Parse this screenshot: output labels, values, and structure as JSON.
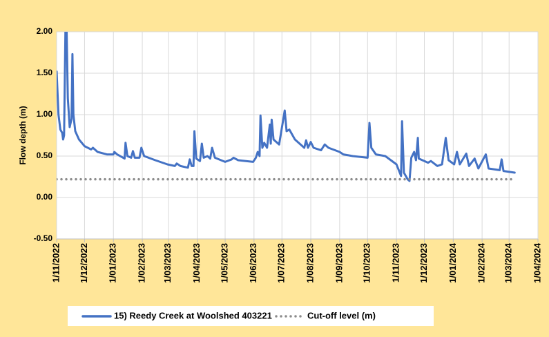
{
  "chart_data": {
    "type": "line",
    "ylabel": "Flow depth (m)",
    "ylim": [
      -0.5,
      2.0
    ],
    "yticks": [
      {
        "value": -0.5,
        "label": "-0.50"
      },
      {
        "value": 0,
        "label": "0.00"
      },
      {
        "value": 0.5,
        "label": "0.50"
      },
      {
        "value": 1.0,
        "label": "1.00"
      },
      {
        "value": 1.5,
        "label": "1.50"
      },
      {
        "value": 2.0,
        "label": "2.00"
      }
    ],
    "xlim": [
      "2022-11-01",
      "2024-04-01"
    ],
    "xticks": [
      {
        "value": "2022-11-01",
        "label": "1/11/2022"
      },
      {
        "value": "2022-12-01",
        "label": "1/12/2022"
      },
      {
        "value": "2023-01-01",
        "label": "1/01/2023"
      },
      {
        "value": "2023-02-01",
        "label": "1/02/2023"
      },
      {
        "value": "2023-03-01",
        "label": "1/03/2023"
      },
      {
        "value": "2023-04-01",
        "label": "1/04/2023"
      },
      {
        "value": "2023-05-01",
        "label": "1/05/2023"
      },
      {
        "value": "2023-06-01",
        "label": "1/06/2023"
      },
      {
        "value": "2023-07-01",
        "label": "1/07/2023"
      },
      {
        "value": "2023-08-01",
        "label": "1/08/2023"
      },
      {
        "value": "2023-09-01",
        "label": "1/09/2023"
      },
      {
        "value": "2023-10-01",
        "label": "1/10/2023"
      },
      {
        "value": "2023-11-01",
        "label": "1/11/2023"
      },
      {
        "value": "2023-12-01",
        "label": "1/12/2023"
      },
      {
        "value": "2024-01-01",
        "label": "1/01/2024"
      },
      {
        "value": "2024-02-01",
        "label": "1/02/2024"
      },
      {
        "value": "2024-03-01",
        "label": "1/03/2024"
      },
      {
        "value": "2024-04-01",
        "label": "1/04/2024"
      }
    ],
    "grid": true,
    "legend": "bottom",
    "series": [
      {
        "name": "15) Reedy Creek at Woolshed 403221",
        "color": "#4472c4",
        "style": "solid",
        "x": [
          "2022-11-01",
          "2022-11-03",
          "2022-11-05",
          "2022-11-07",
          "2022-11-08",
          "2022-11-09",
          "2022-11-11",
          "2022-11-13",
          "2022-11-15",
          "2022-11-17",
          "2022-11-18",
          "2022-11-19",
          "2022-11-21",
          "2022-11-25",
          "2022-12-01",
          "2022-12-08",
          "2022-12-10",
          "2022-12-15",
          "2022-12-25",
          "2023-01-01",
          "2023-01-02",
          "2023-01-05",
          "2023-01-13",
          "2023-01-14",
          "2023-01-16",
          "2023-01-20",
          "2023-01-22",
          "2023-01-24",
          "2023-01-29",
          "2023-01-31",
          "2023-02-03",
          "2023-02-15",
          "2023-02-28",
          "2023-03-08",
          "2023-03-10",
          "2023-03-14",
          "2023-03-22",
          "2023-03-24",
          "2023-03-26",
          "2023-03-28",
          "2023-03-29",
          "2023-03-31",
          "2023-04-04",
          "2023-04-06",
          "2023-04-08",
          "2023-04-12",
          "2023-04-15",
          "2023-04-17",
          "2023-04-20",
          "2023-05-01",
          "2023-05-08",
          "2023-05-10",
          "2023-05-15",
          "2023-05-31",
          "2023-06-03",
          "2023-06-05",
          "2023-06-07",
          "2023-06-08",
          "2023-06-10",
          "2023-06-12",
          "2023-06-15",
          "2023-06-18",
          "2023-06-19",
          "2023-06-20",
          "2023-06-22",
          "2023-06-28",
          "2023-07-04",
          "2023-07-06",
          "2023-07-09",
          "2023-07-15",
          "2023-07-25",
          "2023-07-27",
          "2023-07-29",
          "2023-08-01",
          "2023-08-04",
          "2023-08-12",
          "2023-08-16",
          "2023-08-20",
          "2023-09-01",
          "2023-09-05",
          "2023-09-15",
          "2023-10-01",
          "2023-10-03",
          "2023-10-05",
          "2023-10-10",
          "2023-10-20",
          "2023-11-01",
          "2023-11-06",
          "2023-11-07",
          "2023-11-09",
          "2023-11-13",
          "2023-11-15",
          "2023-11-17",
          "2023-11-20",
          "2023-11-22",
          "2023-11-24",
          "2023-11-25",
          "2023-12-05",
          "2023-12-08",
          "2023-12-15",
          "2023-12-20",
          "2023-12-24",
          "2023-12-27",
          "2024-01-02",
          "2024-01-05",
          "2024-01-08",
          "2024-01-15",
          "2024-01-18",
          "2024-01-24",
          "2024-01-28",
          "2024-02-05",
          "2024-02-08",
          "2024-02-20",
          "2024-02-22",
          "2024-02-24",
          "2024-03-07"
        ],
        "values": [
          1.52,
          1.0,
          0.82,
          0.78,
          0.7,
          0.75,
          2.5,
          1.2,
          0.85,
          0.95,
          1.73,
          1.0,
          0.8,
          0.7,
          0.62,
          0.58,
          0.6,
          0.55,
          0.52,
          0.52,
          0.55,
          0.52,
          0.47,
          0.66,
          0.5,
          0.48,
          0.56,
          0.48,
          0.48,
          0.6,
          0.5,
          0.45,
          0.4,
          0.38,
          0.41,
          0.38,
          0.36,
          0.46,
          0.38,
          0.38,
          0.8,
          0.47,
          0.44,
          0.65,
          0.48,
          0.5,
          0.47,
          0.6,
          0.48,
          0.43,
          0.46,
          0.48,
          0.45,
          0.43,
          0.48,
          0.55,
          0.5,
          0.99,
          0.6,
          0.66,
          0.6,
          0.88,
          0.65,
          0.94,
          0.7,
          0.64,
          1.05,
          0.8,
          0.82,
          0.7,
          0.6,
          0.69,
          0.6,
          0.67,
          0.6,
          0.57,
          0.64,
          0.6,
          0.55,
          0.52,
          0.5,
          0.48,
          0.9,
          0.6,
          0.52,
          0.5,
          0.4,
          0.26,
          0.92,
          0.3,
          0.22,
          0.2,
          0.48,
          0.55,
          0.45,
          0.72,
          0.47,
          0.42,
          0.44,
          0.38,
          0.4,
          0.72,
          0.45,
          0.4,
          0.55,
          0.4,
          0.53,
          0.38,
          0.47,
          0.35,
          0.52,
          0.35,
          0.33,
          0.46,
          0.32,
          0.3
        ]
      },
      {
        "name": "Cut-off level (m)",
        "color": "#8c8c8c",
        "style": "dotted",
        "x": [
          "2022-11-01",
          "2024-03-07"
        ],
        "values": [
          0.22,
          0.22
        ]
      }
    ]
  }
}
